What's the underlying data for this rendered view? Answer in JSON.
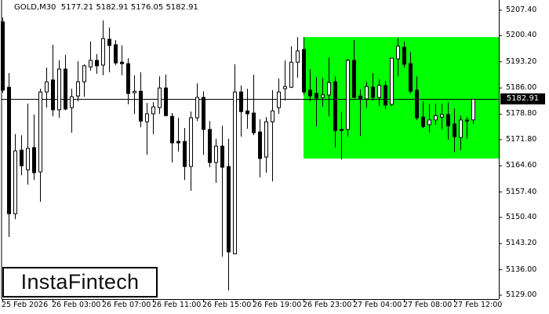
{
  "header": {
    "symbol": "GOLD,M30",
    "open": "5177.21",
    "high": "5182.91",
    "low": "5176.05",
    "close": "5182.91"
  },
  "logo": {
    "text": "InstaFintech"
  },
  "current_price_label": "5182.91",
  "colors": {
    "zone": "#00ff00",
    "bear_body": "#000000",
    "bull_body": "#ffffff",
    "line": "#000000"
  },
  "chart_data": {
    "type": "candlestick",
    "title": "GOLD,M30",
    "timeframe": "M30",
    "ylim": [
      5129.0,
      5207.4
    ],
    "grid": false,
    "y_ticks": [
      "5207.40",
      "5200.40",
      "5193.20",
      "5186.00",
      "5178.80",
      "5171.80",
      "5164.60",
      "5157.40",
      "5150.40",
      "5143.20",
      "5136.00",
      "5129.00"
    ],
    "x_ticks": [
      {
        "label": "25 Feb 2026",
        "candle": 0
      },
      {
        "label": "26 Feb 03:00",
        "candle": 8
      },
      {
        "label": "26 Feb 07:00",
        "candle": 16
      },
      {
        "label": "26 Feb 11:00",
        "candle": 24
      },
      {
        "label": "26 Feb 15:00",
        "candle": 32
      },
      {
        "label": "26 Feb 19:00",
        "candle": 40
      },
      {
        "label": "26 Feb 23:00",
        "candle": 48
      },
      {
        "label": "27 Feb 04:00",
        "candle": 56
      },
      {
        "label": "27 Feb 08:00",
        "candle": 64
      },
      {
        "label": "27 Feb 12:00",
        "candle": 72
      }
    ],
    "current_price": 5182.91,
    "zone": {
      "from_candle": 48,
      "top": 5200.0,
      "bottom": 5166.6,
      "color": "#00ff00"
    },
    "ohlc_fields": [
      "open",
      "high",
      "low",
      "close"
    ],
    "candles": [
      [
        5204.2,
        5205.4,
        5184.7,
        5185.4
      ],
      [
        5186.2,
        5190.1,
        5145.0,
        5151.4
      ],
      [
        5151.4,
        5173.3,
        5149.9,
        5168.7
      ],
      [
        5168.9,
        5173.0,
        5162.0,
        5164.6
      ],
      [
        5163.5,
        5181.7,
        5159.4,
        5169.4
      ],
      [
        5169.6,
        5178.7,
        5160.7,
        5162.7
      ],
      [
        5162.9,
        5185.8,
        5154.7,
        5184.9
      ],
      [
        5184.9,
        5191.6,
        5180.6,
        5187.7
      ],
      [
        5188.2,
        5197.9,
        5178.2,
        5180.0
      ],
      [
        5180.0,
        5193.6,
        5177.8,
        5191.2
      ],
      [
        5191.2,
        5195.1,
        5179.9,
        5180.2
      ],
      [
        5180.6,
        5185.8,
        5173.7,
        5183.6
      ],
      [
        5183.8,
        5193.4,
        5182.3,
        5187.7
      ],
      [
        5187.7,
        5192.5,
        5183.6,
        5192.1
      ],
      [
        5191.8,
        5198.8,
        5190.8,
        5193.6
      ],
      [
        5193.6,
        5195.3,
        5189.9,
        5192.1
      ],
      [
        5192.3,
        5204.6,
        5189.5,
        5199.6
      ],
      [
        5199.4,
        5202.6,
        5190.3,
        5197.7
      ],
      [
        5197.9,
        5199.2,
        5192.3,
        5192.9
      ],
      [
        5193.1,
        5197.7,
        5189.5,
        5192.7
      ],
      [
        5192.7,
        5194.2,
        5181.5,
        5184.5
      ],
      [
        5184.7,
        5189.5,
        5178.9,
        5185.1
      ],
      [
        5185.1,
        5190.3,
        5175.2,
        5176.9
      ],
      [
        5176.7,
        5181.9,
        5167.6,
        5178.9
      ],
      [
        5178.9,
        5182.1,
        5173.3,
        5180.8
      ],
      [
        5180.6,
        5189.2,
        5178.9,
        5186.0
      ],
      [
        5186.0,
        5189.7,
        5178.2,
        5178.4
      ],
      [
        5178.2,
        5179.1,
        5165.5,
        5170.9
      ],
      [
        5171.3,
        5177.8,
        5168.5,
        5170.9
      ],
      [
        5171.3,
        5175.0,
        5160.7,
        5164.4
      ],
      [
        5164.4,
        5179.5,
        5157.7,
        5177.8
      ],
      [
        5177.8,
        5187.3,
        5176.9,
        5183.4
      ],
      [
        5183.4,
        5185.1,
        5167.6,
        5174.6
      ],
      [
        5174.6,
        5176.9,
        5164.2,
        5165.5
      ],
      [
        5165.5,
        5172.0,
        5159.9,
        5170.0
      ],
      [
        5170.0,
        5175.6,
        5139.6,
        5164.2
      ],
      [
        5164.4,
        5172.0,
        5130.3,
        5140.9
      ],
      [
        5140.4,
        5192.5,
        5140.2,
        5184.9
      ],
      [
        5184.9,
        5186.7,
        5172.6,
        5179.5
      ],
      [
        5179.7,
        5185.8,
        5174.8,
        5178.9
      ],
      [
        5179.1,
        5189.7,
        5173.0,
        5173.7
      ],
      [
        5173.9,
        5177.4,
        5161.4,
        5166.6
      ],
      [
        5167.0,
        5178.0,
        5162.7,
        5176.7
      ],
      [
        5176.7,
        5185.4,
        5160.3,
        5179.7
      ],
      [
        5180.6,
        5188.6,
        5178.9,
        5184.9
      ],
      [
        5185.8,
        5193.6,
        5182.6,
        5186.4
      ],
      [
        5186.2,
        5197.5,
        5186.0,
        5193.1
      ],
      [
        5193.1,
        5200.0,
        5188.8,
        5196.2
      ],
      [
        5196.6,
        5200.0,
        5184.1,
        5184.9
      ],
      [
        5185.4,
        5191.2,
        5182.3,
        5183.8
      ],
      [
        5184.5,
        5189.0,
        5175.4,
        5183.2
      ],
      [
        5183.4,
        5188.8,
        5180.8,
        5184.1
      ],
      [
        5184.1,
        5194.4,
        5178.2,
        5187.5
      ],
      [
        5187.7,
        5189.2,
        5169.6,
        5174.3
      ],
      [
        5174.6,
        5179.5,
        5166.4,
        5174.3
      ],
      [
        5174.6,
        5194.0,
        5172.6,
        5193.6
      ],
      [
        5193.6,
        5199.2,
        5183.2,
        5183.4
      ],
      [
        5183.8,
        5185.6,
        5172.8,
        5183.0
      ],
      [
        5183.0,
        5187.7,
        5180.6,
        5186.4
      ],
      [
        5186.2,
        5190.1,
        5182.6,
        5183.4
      ],
      [
        5183.4,
        5188.4,
        5181.0,
        5186.7
      ],
      [
        5186.7,
        5188.0,
        5180.2,
        5181.3
      ],
      [
        5181.5,
        5194.2,
        5181.0,
        5194.2
      ],
      [
        5194.0,
        5199.8,
        5189.2,
        5197.5
      ],
      [
        5197.2,
        5198.8,
        5191.6,
        5192.5
      ],
      [
        5192.7,
        5195.9,
        5184.5,
        5185.1
      ],
      [
        5185.4,
        5189.2,
        5177.2,
        5177.8
      ],
      [
        5178.0,
        5182.3,
        5175.0,
        5175.4
      ],
      [
        5175.9,
        5181.7,
        5173.7,
        5177.2
      ],
      [
        5177.2,
        5181.7,
        5175.9,
        5178.4
      ],
      [
        5178.0,
        5181.7,
        5174.6,
        5178.7
      ],
      [
        5178.7,
        5182.1,
        5171.8,
        5175.6
      ],
      [
        5176.1,
        5180.4,
        5168.3,
        5172.6
      ],
      [
        5172.4,
        5178.4,
        5168.9,
        5177.2
      ],
      [
        5177.2,
        5178.0,
        5172.0,
        5176.9
      ],
      [
        5177.21,
        5182.91,
        5176.05,
        5182.91
      ]
    ]
  }
}
